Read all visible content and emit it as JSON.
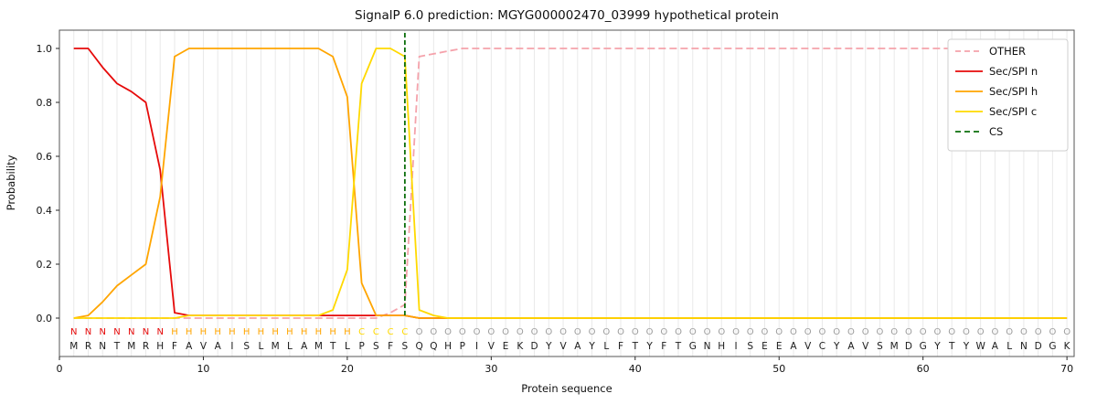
{
  "chart_data": {
    "type": "line",
    "title": "SignalP 6.0 prediction: MGYG000002470_03999 hypothetical protein",
    "xlabel": "Protein sequence",
    "ylabel": "Probability",
    "xlim": [
      0,
      70.5
    ],
    "ylim": [
      0,
      1
    ],
    "xticks": [
      0,
      10,
      20,
      30,
      40,
      50,
      60,
      70
    ],
    "yticks": [
      0.0,
      0.2,
      0.4,
      0.6,
      0.8,
      1.0
    ],
    "grid": "vertical-line-per-residue",
    "grid_color": "#e9e9e9",
    "legend_position": "upper-right",
    "sequence": "MRNTMRHFAVAISLMLAMTLPSFSQQHPIVEKDYVAYLFTYFTGNHISEEAVCYAVSMDGYTYWALNDGK",
    "region_labels": "NNNNNNNHHHHHHHHHHHHHCCCCOOOOOOOOOOOOOOOOOOOOOOOOOOOOOOOOOOOOOOOOOOOOOO",
    "label_colors": {
      "N": "#e60a0a",
      "H": "#ffa500",
      "C": "#ffd900",
      "O": "#9e9e9e"
    },
    "sequence_color": "#1c1c1c",
    "series": [
      {
        "name": "OTHER",
        "color": "#f5a2ab",
        "dashed": true,
        "values": [
          0,
          0,
          0,
          0,
          0,
          0,
          0,
          0,
          0,
          0,
          0,
          0,
          0,
          0,
          0,
          0,
          0,
          0,
          0,
          0,
          0,
          0,
          0.02,
          0.05,
          0.97,
          0.98,
          0.99,
          1,
          1,
          1,
          1,
          1,
          1,
          1,
          1,
          1,
          1,
          1,
          1,
          1,
          1,
          1,
          1,
          1,
          1,
          1,
          1,
          1,
          1,
          1,
          1,
          1,
          1,
          1,
          1,
          1,
          1,
          1,
          1,
          1,
          1,
          1,
          1,
          1,
          1,
          1,
          1,
          1,
          1,
          1
        ]
      },
      {
        "name": "Sec/SPI n",
        "color": "#e60a0a",
        "dashed": false,
        "values": [
          1,
          1,
          0.93,
          0.87,
          0.84,
          0.8,
          0.55,
          0.02,
          0.01,
          0.01,
          0.01,
          0.01,
          0.01,
          0.01,
          0.01,
          0.01,
          0.01,
          0.01,
          0.01,
          0.01,
          0.01,
          0.01,
          0.01,
          0.01,
          0,
          0,
          0,
          0,
          0,
          0,
          0,
          0,
          0,
          0,
          0,
          0,
          0,
          0,
          0,
          0,
          0,
          0,
          0,
          0,
          0,
          0,
          0,
          0,
          0,
          0,
          0,
          0,
          0,
          0,
          0,
          0,
          0,
          0,
          0,
          0,
          0,
          0,
          0,
          0,
          0,
          0,
          0,
          0,
          0,
          0
        ]
      },
      {
        "name": "Sec/SPI h",
        "color": "#ffa500",
        "dashed": false,
        "values": [
          0,
          0.01,
          0.06,
          0.12,
          0.16,
          0.2,
          0.45,
          0.97,
          1,
          1,
          1,
          1,
          1,
          1,
          1,
          1,
          1,
          1,
          0.97,
          0.82,
          0.13,
          0.01,
          0.01,
          0.01,
          0,
          0,
          0,
          0,
          0,
          0,
          0,
          0,
          0,
          0,
          0,
          0,
          0,
          0,
          0,
          0,
          0,
          0,
          0,
          0,
          0,
          0,
          0,
          0,
          0,
          0,
          0,
          0,
          0,
          0,
          0,
          0,
          0,
          0,
          0,
          0,
          0,
          0,
          0,
          0,
          0,
          0,
          0,
          0,
          0,
          0
        ]
      },
      {
        "name": "Sec/SPI c",
        "color": "#ffd900",
        "dashed": false,
        "values": [
          0,
          0,
          0,
          0,
          0,
          0,
          0,
          0,
          0.01,
          0.01,
          0.01,
          0.01,
          0.01,
          0.01,
          0.01,
          0.01,
          0.01,
          0.01,
          0.03,
          0.18,
          0.87,
          1,
          1,
          0.97,
          0.03,
          0.01,
          0,
          0,
          0,
          0,
          0,
          0,
          0,
          0,
          0,
          0,
          0,
          0,
          0,
          0,
          0,
          0,
          0,
          0,
          0,
          0,
          0,
          0,
          0,
          0,
          0,
          0,
          0,
          0,
          0,
          0,
          0,
          0,
          0,
          0,
          0,
          0,
          0,
          0,
          0,
          0,
          0,
          0,
          0,
          0
        ]
      }
    ],
    "cs": {
      "label": "CS",
      "color": "#0b6e0b",
      "dashed": true,
      "position": 24
    }
  }
}
